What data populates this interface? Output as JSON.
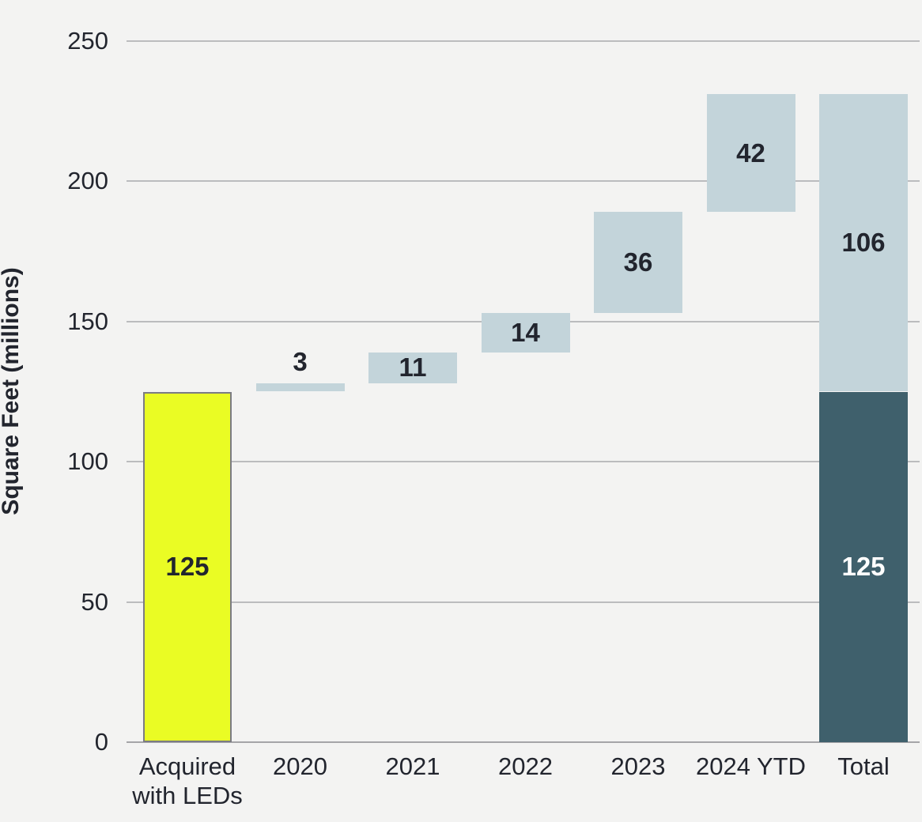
{
  "chart_data": {
    "type": "bar",
    "subtype": "waterfall",
    "title": "",
    "xlabel": "",
    "ylabel": "Square Feet (millions)",
    "ylim": [
      0,
      250
    ],
    "yticks": [
      0,
      50,
      100,
      150,
      200,
      250
    ],
    "grid": true,
    "legend": false,
    "categories": [
      "Acquired with LEDs",
      "2020",
      "2021",
      "2022",
      "2023",
      "2024 YTD",
      "Total"
    ],
    "bars": [
      {
        "category": "Acquired with LEDs",
        "start": 0,
        "end": 125,
        "value": 125,
        "label": "125",
        "role": "initial",
        "label_placement": "inside"
      },
      {
        "category": "2020",
        "start": 125,
        "end": 128,
        "value": 3,
        "label": "3",
        "role": "increment",
        "label_placement": "above"
      },
      {
        "category": "2021",
        "start": 128,
        "end": 139,
        "value": 11,
        "label": "11",
        "role": "increment",
        "label_placement": "inside"
      },
      {
        "category": "2022",
        "start": 139,
        "end": 153,
        "value": 14,
        "label": "14",
        "role": "increment",
        "label_placement": "inside"
      },
      {
        "category": "2023",
        "start": 153,
        "end": 189,
        "value": 36,
        "label": "36",
        "role": "increment",
        "label_placement": "inside"
      },
      {
        "category": "2024 YTD",
        "start": 189,
        "end": 231,
        "value": 42,
        "label": "42",
        "role": "increment",
        "label_placement": "inside"
      },
      {
        "category": "Total",
        "role": "total",
        "segments": [
          {
            "start": 0,
            "end": 125,
            "value": 125,
            "label": "125",
            "color_role": "total_base",
            "text_color_role": "inverse"
          },
          {
            "start": 125,
            "end": 231,
            "value": 106,
            "label": "106",
            "color_role": "increment",
            "text_color_role": "default"
          }
        ]
      }
    ],
    "colors": {
      "background": "#f3f3f2",
      "initial_fill": "#eafc24",
      "initial_border": "#7b7b83",
      "increment_fill": "#c3d4da",
      "total_base_fill": "#3f606c",
      "text": "#22252e",
      "inverse_text": "#ffffff",
      "gridline": "#bbbcbe",
      "axis_line": "#a5a5a8"
    }
  }
}
